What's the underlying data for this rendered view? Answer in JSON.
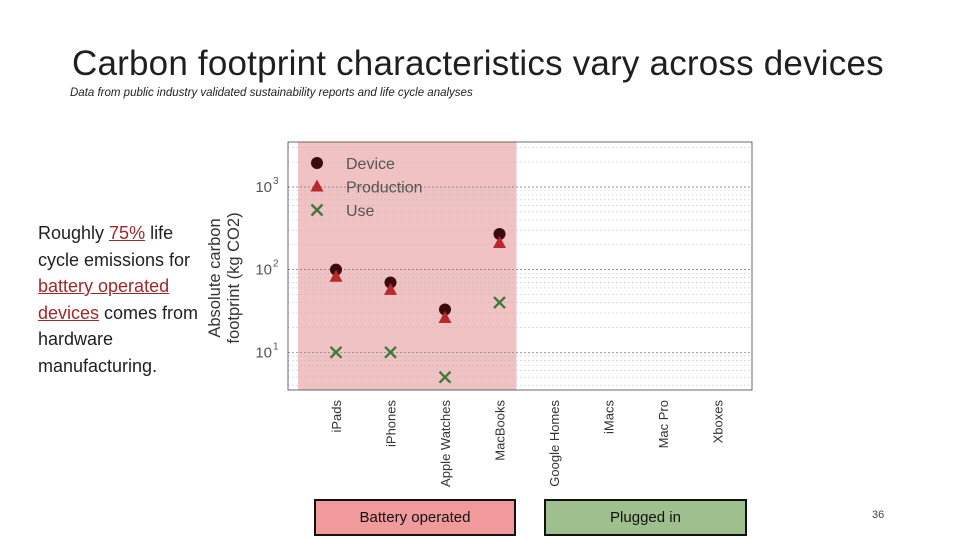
{
  "slide": {
    "title": "Carbon footprint characteristics vary across devices",
    "subtitle": "Data from public industry validated sustainability reports and life cycle analyses",
    "note_parts": [
      "Roughly ",
      "75%",
      " life cycle emissions for ",
      "battery operated devices",
      " comes from hardware manufacturing."
    ],
    "page_number": "36"
  },
  "legend_boxes": {
    "battery": "Battery operated",
    "plugged": "Plugged in"
  },
  "colors": {
    "device": "#3b0a0a",
    "production": "#b8282c",
    "use": "#3f7a3a",
    "battery_region": "#f0c2c3",
    "battery_box": "#f09a9c",
    "plugged_box": "#9fbf8e"
  },
  "chart_data": {
    "type": "scatter",
    "ylabel": "Absolute carbon footprint (kg CO2)",
    "yscale": "log",
    "ylim": [
      3.5,
      3500
    ],
    "y_ticks": [
      10,
      100,
      1000
    ],
    "y_tick_labels": [
      "10",
      "10",
      "10"
    ],
    "y_tick_exponents": [
      "1",
      "2",
      "3"
    ],
    "categories": [
      "iPads",
      "iPhones",
      "Apple Watches",
      "MacBooks",
      "Google Homes",
      "iMacs",
      "Mac Pro",
      "Xboxes"
    ],
    "series": [
      {
        "name": "Device",
        "marker": "circle",
        "values": [
          100,
          70,
          33,
          270,
          null,
          null,
          null,
          null
        ]
      },
      {
        "name": "Production",
        "marker": "triangle",
        "values": [
          82,
          57,
          26,
          210,
          null,
          null,
          null,
          null
        ]
      },
      {
        "name": "Use",
        "marker": "x",
        "values": [
          10,
          10,
          5,
          40,
          null,
          null,
          null,
          null
        ]
      }
    ],
    "highlight_region": {
      "from_category": "iPads",
      "to_category": "MacBooks",
      "label": "Battery operated"
    },
    "legend_position": "top-left",
    "grid": true
  }
}
